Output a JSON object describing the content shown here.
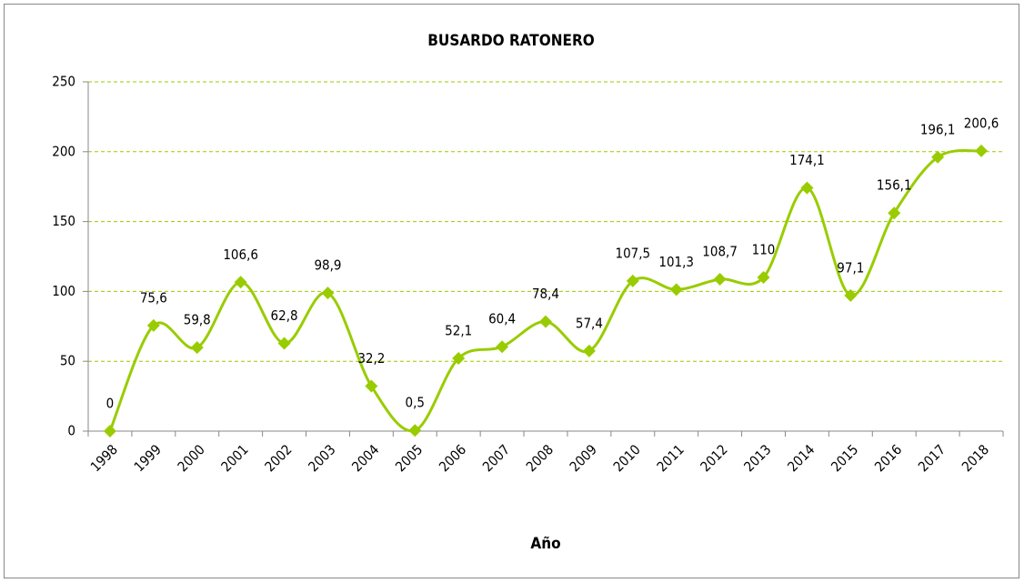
{
  "chart_data": {
    "type": "line",
    "title": "BUSARDO RATONERO",
    "x_label": "Año",
    "categories": [
      "1998",
      "1999",
      "2000",
      "2001",
      "2002",
      "2003",
      "2004",
      "2005",
      "2006",
      "2007",
      "2008",
      "2009",
      "2010",
      "2011",
      "2012",
      "2013",
      "2014",
      "2015",
      "2016",
      "2017",
      "2018"
    ],
    "series": [
      {
        "name": "BUSARDO RATONERO",
        "color": "#99cc00",
        "values": [
          0,
          75.6,
          59.8,
          106.6,
          62.8,
          98.9,
          32.2,
          0.5,
          52.1,
          60.4,
          78.4,
          57.4,
          107.5,
          101.3,
          108.7,
          110,
          174.1,
          97.1,
          156.1,
          196.1,
          200.6
        ],
        "value_labels": [
          "0",
          "75,6",
          "59,8",
          "106,6",
          "62,8",
          "98,9",
          "32,2",
          "0,5",
          "52,1",
          "60,4",
          "78,4",
          "57,4",
          "107,5",
          "101,3",
          "108,7",
          "110",
          "174,1",
          "97,1",
          "156,1",
          "196,1",
          "200,6"
        ]
      }
    ],
    "ylim": [
      0,
      250
    ],
    "yticks": [
      0,
      50,
      100,
      150,
      200,
      250
    ],
    "grid": true,
    "smooth": true,
    "marker": "diamond",
    "legend": false
  }
}
